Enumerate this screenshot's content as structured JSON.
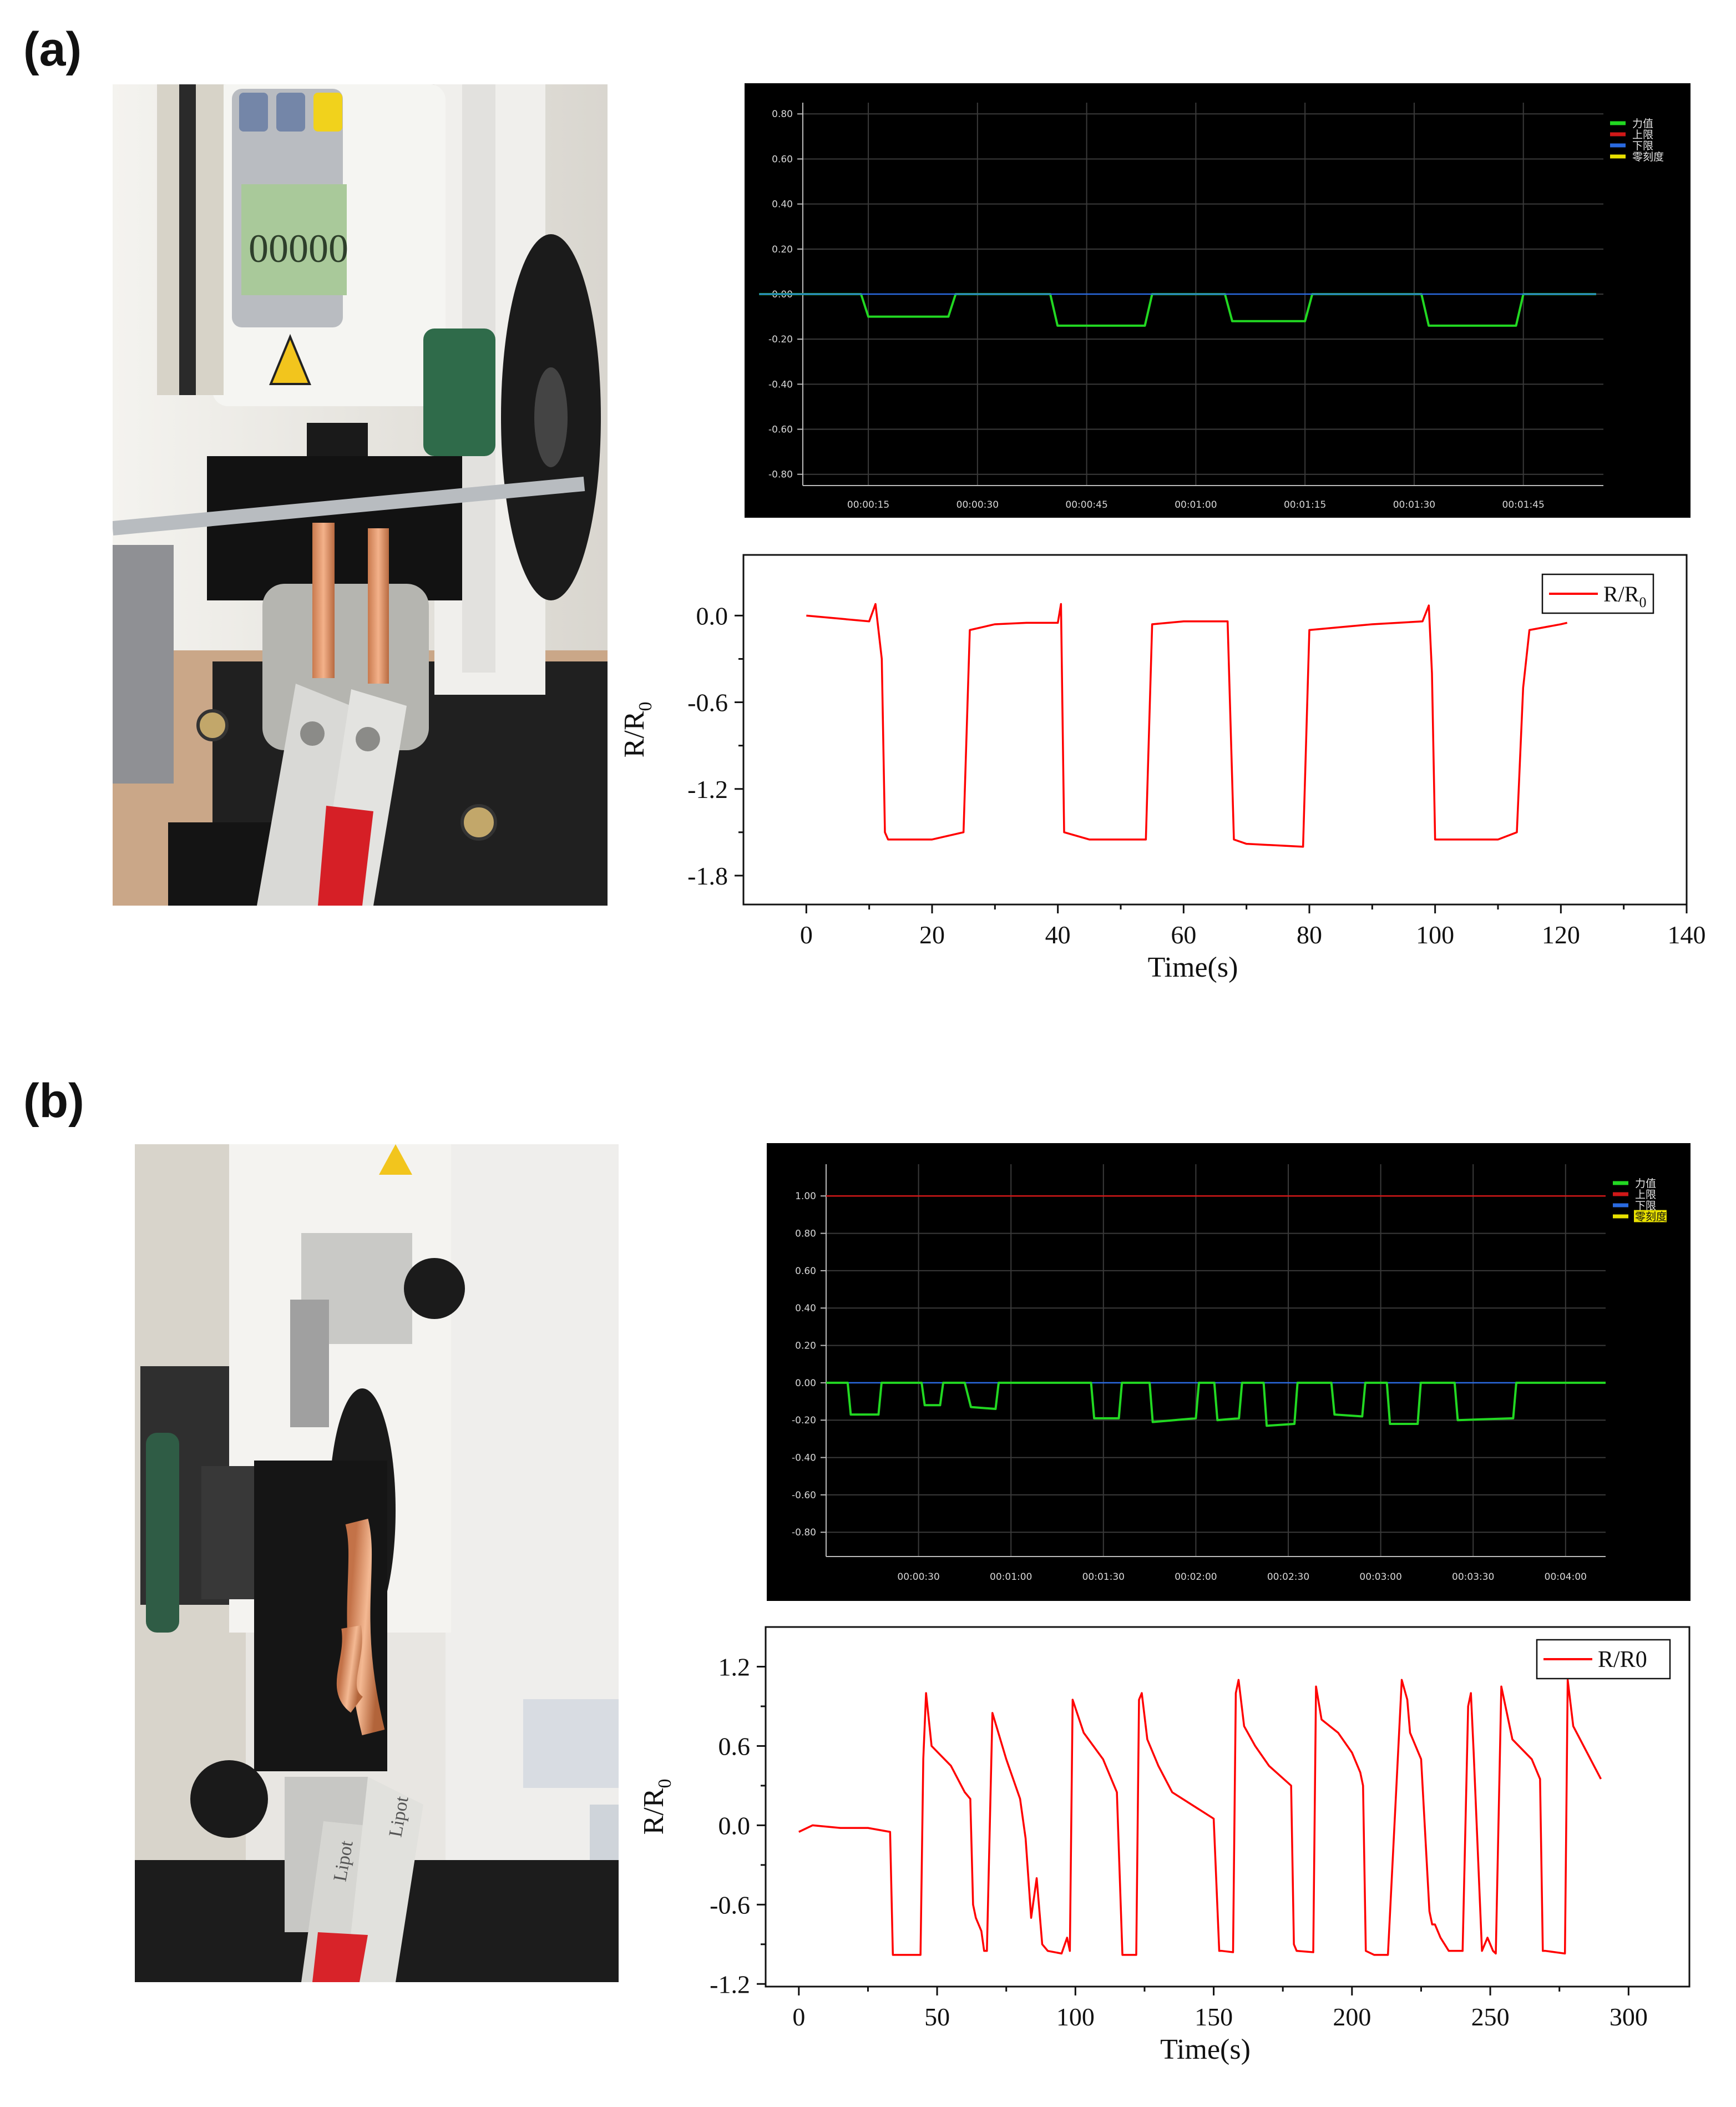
{
  "panels": {
    "a": {
      "label": "(a)"
    },
    "b": {
      "label": "(b)"
    }
  },
  "chart_data": [
    {
      "id": "a-software",
      "type": "line",
      "background": "#000000",
      "y_ticks": [
        "0.80",
        "0.60",
        "0.40",
        "0.20",
        "0.00",
        "-0.20",
        "-0.40",
        "-0.60",
        "-0.80"
      ],
      "ylim": [
        -0.85,
        0.85
      ],
      "x_ticks": [
        "00:00:15",
        "00:00:30",
        "00:00:45",
        "00:01:00",
        "00:01:15",
        "00:01:30",
        "00:01:45"
      ],
      "x_tick_seconds": [
        15,
        30,
        45,
        60,
        75,
        90,
        105
      ],
      "xlim": [
        6,
        116
      ],
      "legend": [
        {
          "name": "力值",
          "color": "#22d822"
        },
        {
          "name": "上限",
          "color": "#d01818"
        },
        {
          "name": "下限",
          "color": "#2a6ae0"
        },
        {
          "name": "零刻度",
          "color": "#e8e000"
        }
      ],
      "series": [
        {
          "name": "力值",
          "color": "#22d822",
          "x": [
            0,
            14,
            15,
            26,
            27,
            40,
            41,
            53,
            54,
            64,
            65,
            75,
            76,
            91,
            92,
            104,
            105,
            115
          ],
          "y": [
            0,
            0,
            -0.1,
            -0.1,
            0,
            0,
            -0.14,
            -0.14,
            0,
            0,
            -0.12,
            -0.12,
            0,
            0,
            -0.14,
            -0.14,
            0,
            0
          ]
        },
        {
          "name": "下限",
          "color": "#2a6ae0",
          "x": [
            0,
            115
          ],
          "y": [
            0,
            0
          ]
        }
      ]
    },
    {
      "id": "a-resistance",
      "type": "line",
      "background": "#ffffff",
      "xlabel": "Time(s)",
      "ylabel": "R/R",
      "ylabel_sub": "0",
      "x_ticks": [
        0,
        20,
        40,
        60,
        80,
        100,
        120,
        140
      ],
      "y_ticks": [
        "0.0",
        "-0.6",
        "-1.2",
        "-1.8"
      ],
      "y_tick_values": [
        0,
        -0.6,
        -1.2,
        -1.8
      ],
      "xlim": [
        -10,
        140
      ],
      "ylim": [
        -2.0,
        0.42
      ],
      "legend": [
        {
          "name": "R/R",
          "sub": "0",
          "color": "#ff0000"
        }
      ],
      "series": [
        {
          "name": "R/R0",
          "color": "#ff0000",
          "x": [
            0,
            5,
            10,
            11,
            12,
            12.5,
            13,
            20,
            25,
            26,
            30,
            35,
            40,
            40.5,
            41,
            45,
            50,
            54,
            55,
            60,
            67,
            68,
            70,
            79,
            80,
            85,
            90,
            98,
            99,
            99.5,
            100,
            110,
            113,
            114,
            115,
            120,
            121
          ],
          "y": [
            0,
            -0.02,
            -0.04,
            0.08,
            -0.3,
            -1.5,
            -1.55,
            -1.55,
            -1.5,
            -0.1,
            -0.06,
            -0.05,
            -0.05,
            0.08,
            -1.5,
            -1.55,
            -1.55,
            -1.55,
            -0.06,
            -0.04,
            -0.04,
            -1.55,
            -1.58,
            -1.6,
            -0.1,
            -0.08,
            -0.06,
            -0.04,
            0.07,
            -0.4,
            -1.55,
            -1.55,
            -1.5,
            -0.5,
            -0.1,
            -0.06,
            -0.05
          ]
        }
      ]
    },
    {
      "id": "b-software",
      "type": "line",
      "background": "#000000",
      "y_ticks": [
        "1.00",
        "0.80",
        "0.60",
        "0.40",
        "0.20",
        "0.00",
        "-0.20",
        "-0.40",
        "-0.60",
        "-0.80"
      ],
      "ylim": [
        -0.93,
        1.17
      ],
      "x_ticks": [
        "00:00:30",
        "00:01:00",
        "00:01:30",
        "00:02:00",
        "00:02:30",
        "00:03:00",
        "00:03:30",
        "00:04:00"
      ],
      "x_tick_seconds": [
        30,
        60,
        90,
        120,
        150,
        180,
        210,
        240
      ],
      "xlim": [
        0,
        253
      ],
      "legend": [
        {
          "name": "力值",
          "color": "#22d822"
        },
        {
          "name": "上限",
          "color": "#d01818"
        },
        {
          "name": "下限",
          "color": "#2a6ae0"
        },
        {
          "name": "零刻度",
          "color": "#e8e000"
        }
      ],
      "series": [
        {
          "name": "上限",
          "color": "#d01818",
          "x": [
            0,
            253
          ],
          "y": [
            1,
            1
          ]
        },
        {
          "name": "下限",
          "color": "#2a6ae0",
          "x": [
            0,
            253
          ],
          "y": [
            0,
            0
          ]
        },
        {
          "name": "力值",
          "color": "#22d822",
          "x": [
            0,
            7,
            8,
            17,
            18,
            31,
            32,
            37,
            38,
            45,
            47,
            55,
            56,
            86,
            87,
            95,
            96,
            105,
            106,
            120,
            121,
            126,
            127,
            134,
            135,
            142,
            143,
            152,
            153,
            164,
            165,
            174,
            175,
            182,
            183,
            192,
            193,
            204,
            205,
            223,
            224,
            233,
            234,
            253
          ],
          "y": [
            0,
            0,
            -0.17,
            -0.17,
            0,
            0,
            -0.12,
            -0.12,
            0,
            0,
            -0.13,
            -0.14,
            0,
            0,
            -0.19,
            -0.19,
            0,
            0,
            -0.21,
            -0.19,
            0,
            0,
            -0.2,
            -0.19,
            0,
            0,
            -0.23,
            -0.22,
            0,
            0,
            -0.17,
            -0.18,
            0,
            0,
            -0.22,
            -0.22,
            0,
            0,
            -0.2,
            -0.19,
            0,
            0,
            0,
            0
          ]
        }
      ]
    },
    {
      "id": "b-resistance",
      "type": "line",
      "background": "#ffffff",
      "xlabel": "Time(s)",
      "ylabel": "R/R",
      "ylabel_sub": "0",
      "x_ticks": [
        0,
        50,
        100,
        150,
        200,
        250,
        300
      ],
      "y_ticks": [
        "1.2",
        "0.6",
        "0.0",
        "-0.6",
        "-1.2"
      ],
      "y_tick_values": [
        1.2,
        0.6,
        0,
        -0.6,
        -1.2
      ],
      "xlim": [
        -12,
        322
      ],
      "ylim": [
        -1.22,
        1.5
      ],
      "legend": [
        {
          "name": "R/R0",
          "color": "#ff0000"
        }
      ],
      "series": [
        {
          "name": "R/R0",
          "color": "#ff0000",
          "x": [
            0,
            5,
            15,
            25,
            33,
            34,
            44,
            45,
            46,
            48,
            55,
            60,
            62,
            63,
            64,
            66,
            67,
            68,
            70,
            75,
            80,
            82,
            84,
            86,
            88,
            90,
            95,
            97,
            98,
            99,
            103,
            110,
            115,
            117,
            118,
            122,
            123,
            124,
            126,
            130,
            135,
            150,
            152,
            153,
            157,
            158,
            159,
            161,
            165,
            170,
            178,
            179,
            180,
            186,
            187,
            189,
            195,
            200,
            203,
            204,
            205,
            208,
            213,
            218,
            220,
            221,
            225,
            228,
            229,
            230,
            232,
            235,
            240,
            242,
            243,
            244,
            247,
            249,
            251,
            252,
            254,
            258,
            265,
            268,
            269,
            270,
            277,
            278,
            280,
            285,
            290
          ],
          "y": [
            -0.05,
            0,
            -0.02,
            -0.02,
            -0.05,
            -0.98,
            -0.98,
            0.5,
            1.0,
            0.6,
            0.45,
            0.25,
            0.2,
            -0.6,
            -0.7,
            -0.8,
            -0.95,
            -0.95,
            0.85,
            0.5,
            0.2,
            -0.1,
            -0.7,
            -0.4,
            -0.9,
            -0.95,
            -0.97,
            -0.85,
            -0.95,
            0.95,
            0.7,
            0.5,
            0.25,
            -0.98,
            -0.98,
            -0.98,
            0.95,
            1.0,
            0.65,
            0.45,
            0.25,
            0.05,
            -0.95,
            -0.95,
            -0.96,
            1.0,
            1.1,
            0.75,
            0.6,
            0.45,
            0.3,
            -0.9,
            -0.95,
            -0.96,
            1.05,
            0.8,
            0.7,
            0.55,
            0.4,
            0.3,
            -0.95,
            -0.98,
            -0.98,
            1.1,
            0.95,
            0.7,
            0.5,
            -0.65,
            -0.75,
            -0.75,
            -0.85,
            -0.95,
            -0.95,
            0.9,
            1.0,
            0.55,
            -0.95,
            -0.85,
            -0.95,
            -0.97,
            1.05,
            0.65,
            0.5,
            0.35,
            -0.95,
            -0.95,
            -0.97,
            1.1,
            0.75,
            0.55,
            0.35
          ]
        }
      ]
    }
  ]
}
